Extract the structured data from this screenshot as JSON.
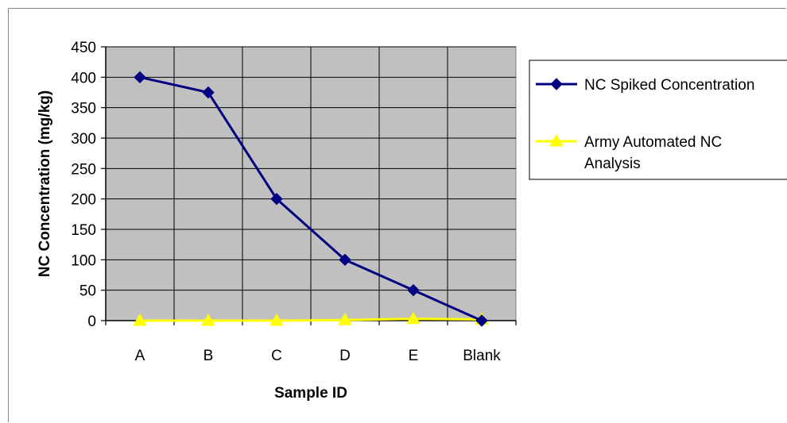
{
  "chart_data": {
    "type": "line",
    "title": "",
    "xlabel": "Sample ID",
    "ylabel": "NC Concentration (mg/kg)",
    "categories": [
      "A",
      "B",
      "C",
      "D",
      "E",
      "Blank"
    ],
    "ylim": [
      0,
      450
    ],
    "yticks": [
      0,
      50,
      100,
      150,
      200,
      250,
      300,
      350,
      400,
      450
    ],
    "grid": true,
    "legend_position": "right",
    "series": [
      {
        "name": "NC Spiked Concentration",
        "marker": "diamond",
        "color": "#000080",
        "values": [
          400,
          375,
          200,
          100,
          50,
          0
        ]
      },
      {
        "name": "Army Automated NC Analysis",
        "marker": "triangle",
        "color": "#FFFF00",
        "values": [
          0,
          0,
          0,
          1,
          3,
          2
        ]
      }
    ],
    "plot_background": "#C0C0C0"
  }
}
